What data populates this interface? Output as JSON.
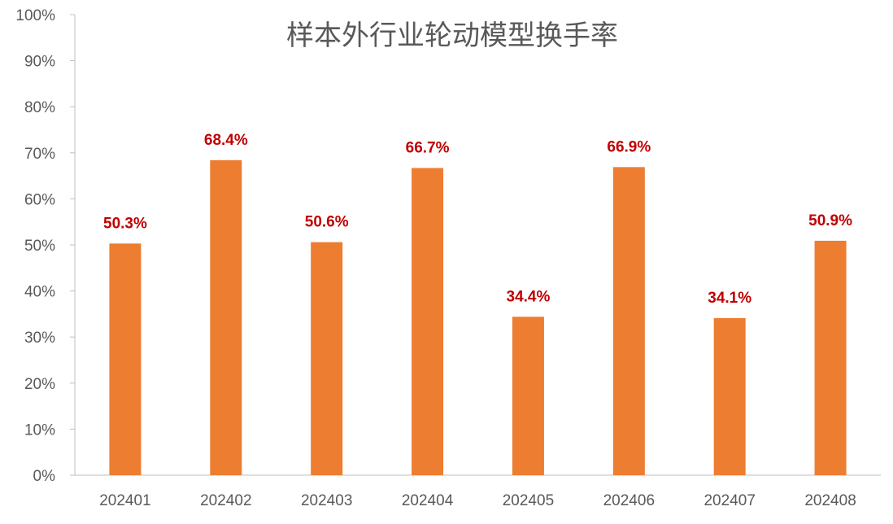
{
  "chart_data": {
    "type": "bar",
    "title": "样本外行业轮动模型换手率",
    "xlabel": "",
    "ylabel": "",
    "categories": [
      "202401",
      "202402",
      "202403",
      "202404",
      "202405",
      "202406",
      "202407",
      "202408"
    ],
    "values": [
      50.3,
      68.4,
      50.6,
      66.7,
      34.4,
      66.9,
      34.1,
      50.9
    ],
    "data_labels": [
      "50.3%",
      "68.4%",
      "50.6%",
      "66.7%",
      "34.4%",
      "66.9%",
      "34.1%",
      "50.9%"
    ],
    "ylim": [
      0,
      100
    ],
    "y_ticks": [
      "0%",
      "10%",
      "20%",
      "30%",
      "40%",
      "50%",
      "60%",
      "70%",
      "80%",
      "90%",
      "100%"
    ],
    "grid": false,
    "legend": "none",
    "bar_color": "#ED7D31",
    "label_color": "#C00000",
    "axis_color": "#BFBFBF"
  }
}
